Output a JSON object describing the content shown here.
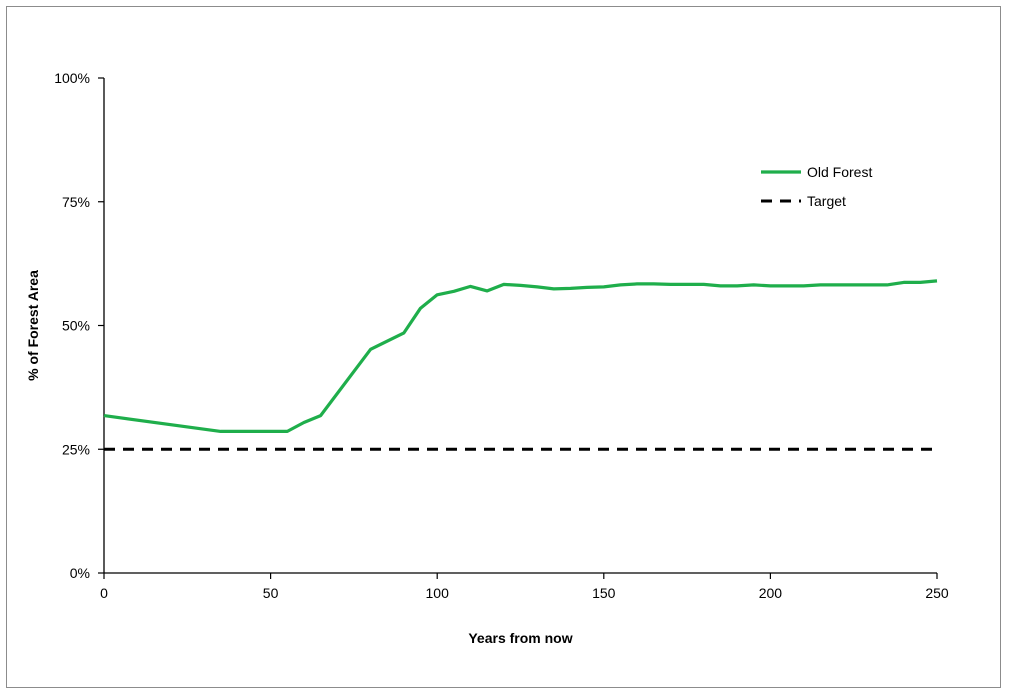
{
  "chart_data": {
    "type": "line",
    "title": "",
    "xlabel": "Years from now",
    "ylabel": "% of Forest Area",
    "xlim": [
      0,
      250
    ],
    "ylim": [
      0,
      100
    ],
    "x_ticks": [
      0,
      50,
      100,
      150,
      200,
      250
    ],
    "y_ticks": [
      0,
      25,
      50,
      75,
      100
    ],
    "x_tick_labels": [
      "0",
      "50",
      "100",
      "150",
      "200",
      "250"
    ],
    "y_tick_labels": [
      "0%",
      "25%",
      "50%",
      "75%",
      "100%"
    ],
    "grid": false,
    "legend_position": "top-right",
    "series": [
      {
        "name": "Old Forest",
        "color": "#1fae4b",
        "style": "solid",
        "x": [
          0,
          35,
          55,
          60,
          65,
          80,
          90,
          95,
          100,
          105,
          110,
          115,
          120,
          125,
          130,
          135,
          140,
          145,
          150,
          155,
          160,
          165,
          170,
          175,
          180,
          185,
          190,
          195,
          200,
          205,
          210,
          215,
          220,
          225,
          230,
          235,
          240,
          245,
          250
        ],
        "y": [
          31.8,
          28.6,
          28.6,
          30.4,
          31.8,
          45.2,
          48.5,
          53.5,
          56.2,
          56.9,
          57.9,
          57.0,
          58.3,
          58.1,
          57.8,
          57.4,
          57.5,
          57.7,
          57.8,
          58.2,
          58.4,
          58.4,
          58.3,
          58.3,
          58.3,
          58.0,
          58.0,
          58.2,
          58.0,
          58.0,
          58.0,
          58.2,
          58.2,
          58.2,
          58.2,
          58.2,
          58.7,
          58.7,
          59.0
        ]
      },
      {
        "name": "Target",
        "color": "#000000",
        "style": "dashed",
        "x": [
          0,
          250
        ],
        "y": [
          25,
          25
        ]
      }
    ]
  }
}
